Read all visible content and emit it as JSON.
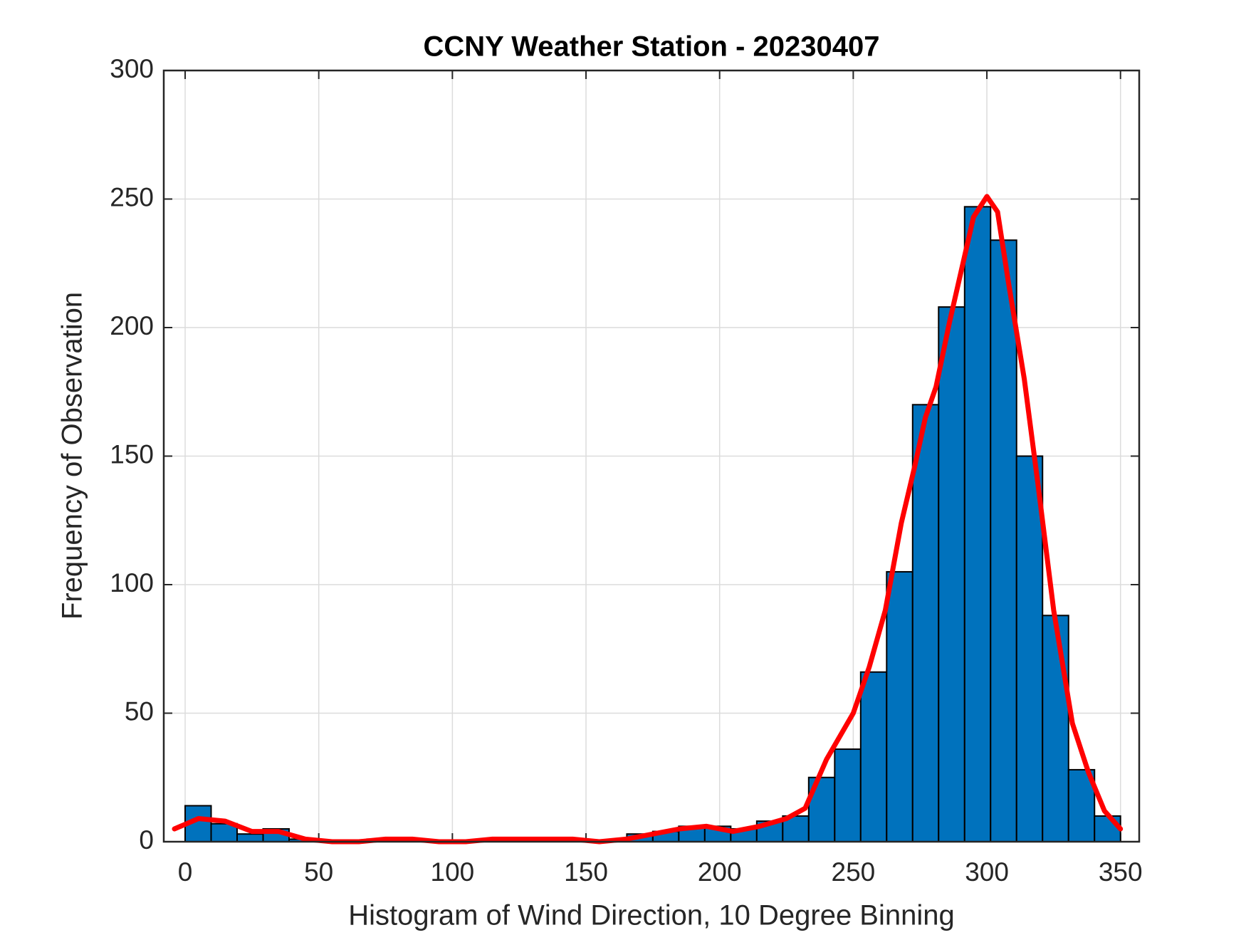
{
  "chart_data": {
    "type": "histogram",
    "title": "CCNY Weather Station - 20230407",
    "x_label": "Histogram of Wind Direction, 10 Degree Binning",
    "y_label": "Frequency of Observation",
    "bins": [
      0,
      9.72,
      19.44,
      29.17,
      38.89,
      48.61,
      58.33,
      68.06,
      77.78,
      87.5,
      97.22,
      106.94,
      116.67,
      126.39,
      136.11,
      145.83,
      155.56,
      165.28,
      175,
      184.72,
      194.44,
      204.17,
      213.89,
      223.61,
      233.33,
      243.06,
      252.78,
      262.5,
      272.22,
      281.94,
      291.67,
      301.39,
      311.11,
      320.83,
      330.56,
      340.28,
      350
    ],
    "values": [
      14,
      7,
      3,
      5,
      1,
      0,
      0,
      1,
      1,
      0,
      0,
      0,
      1,
      1,
      1,
      0,
      0,
      3,
      4,
      6,
      6,
      5,
      8,
      10,
      25,
      36,
      66,
      105,
      170,
      208,
      247,
      234,
      150,
      88,
      28,
      10
    ],
    "color": "#0072bd",
    "line": {
      "color": "#ff0000",
      "x": [
        -4,
        5,
        15,
        25,
        35,
        45,
        55,
        65,
        75,
        85,
        95,
        105,
        115,
        125,
        135,
        145,
        155,
        165,
        175,
        185,
        195,
        205,
        215,
        225,
        232,
        240,
        250,
        256,
        262,
        268,
        273,
        277,
        281,
        286,
        295,
        300,
        304,
        308,
        314,
        319,
        325,
        332,
        338,
        344,
        350
      ],
      "values": [
        5,
        9,
        8,
        4,
        4,
        1,
        0,
        0,
        1,
        1,
        0,
        0,
        1,
        1,
        1,
        1,
        0,
        1,
        3,
        5,
        6,
        4,
        6,
        9,
        13,
        32,
        50,
        68,
        90,
        124,
        146,
        165,
        177,
        202,
        243,
        251,
        245,
        218,
        180,
        140,
        90,
        46,
        27,
        12,
        5
      ]
    },
    "xlim": [
      -8,
      357
    ],
    "ylim": [
      0,
      300
    ],
    "xticks": [
      0,
      50,
      100,
      150,
      200,
      250,
      300,
      350
    ],
    "yticks": [
      0,
      50,
      100,
      150,
      200,
      250,
      300
    ],
    "grid": true
  }
}
